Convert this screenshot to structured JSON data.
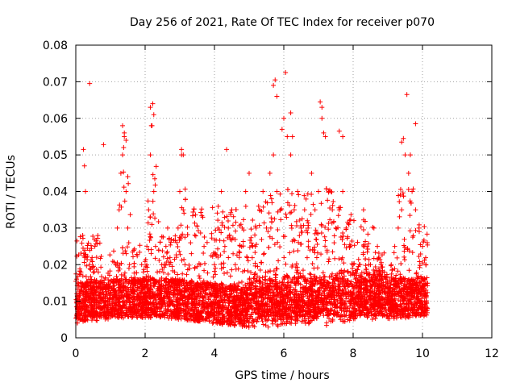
{
  "chart_data": {
    "type": "scatter",
    "title": "Day 256 of 2021, Rate Of TEC Index for receiver p070",
    "xlabel": "GPS time / hours",
    "ylabel": "ROTI / TECUs",
    "xlim": [
      0,
      12
    ],
    "ylim": [
      0,
      0.08
    ],
    "x_ticks": [
      0,
      2,
      4,
      6,
      8,
      10,
      12
    ],
    "x_tick_labels": [
      "0",
      "2",
      "4",
      "6",
      "8",
      "10",
      "12"
    ],
    "y_ticks": [
      0,
      0.01,
      0.02,
      0.03,
      0.04,
      0.05,
      0.06,
      0.07,
      0.08
    ],
    "y_tick_labels": [
      "0",
      "0.01",
      "0.02",
      "0.03",
      "0.04",
      "0.05",
      "0.06",
      "0.07",
      "0.08"
    ],
    "grid": true,
    "marker": "+",
    "marker_color": "#ff0000",
    "x_data_range": [
      0,
      10.15
    ],
    "series": [
      {
        "name": "ROTI",
        "x": [
          0.05,
          0.1,
          0.15,
          0.2,
          0.25,
          0.3,
          0.35,
          0.4,
          0.45,
          0.5,
          0.55,
          0.6,
          0.65,
          0.7,
          0.75,
          0.8,
          0.85,
          0.9,
          0.95,
          1.0,
          1.05,
          1.1,
          1.15,
          1.2,
          1.25,
          1.3,
          1.35,
          1.4,
          1.45,
          1.5,
          1.55,
          1.6,
          1.65,
          1.7,
          1.75,
          1.8,
          1.85,
          1.9,
          1.95,
          2.0,
          2.05,
          2.1,
          2.15,
          2.2,
          2.25,
          2.3,
          2.35,
          2.4,
          2.45,
          2.5,
          2.55,
          2.6,
          2.65,
          2.7,
          2.75,
          2.8,
          2.85,
          2.9,
          2.95,
          3.0,
          3.05,
          3.1,
          3.15,
          3.2,
          3.3,
          3.4,
          3.5,
          3.6,
          3.7,
          3.8,
          3.9,
          4.0,
          4.1,
          4.2,
          4.3,
          4.4,
          4.5,
          4.6,
          4.7,
          4.8,
          4.9,
          5.0,
          5.1,
          5.2,
          5.3,
          5.4,
          5.5,
          5.6,
          5.7,
          5.8,
          5.9,
          6.0,
          6.1,
          6.2,
          6.3,
          6.4,
          6.5,
          6.6,
          6.7,
          6.8,
          6.9,
          7.0,
          7.1,
          7.2,
          7.3,
          7.4,
          7.5,
          7.6,
          7.7,
          7.8,
          7.9,
          8.0,
          8.1,
          8.2,
          8.3,
          8.4,
          8.5,
          8.6,
          8.7,
          8.8,
          8.9,
          9.0,
          9.1,
          9.2,
          9.3,
          9.4,
          9.5,
          9.6,
          9.7,
          9.8,
          9.9,
          10.0,
          10.1,
          0.4,
          0.22,
          0.25,
          0.28,
          0.8,
          1.35,
          1.4,
          1.45,
          1.38,
          2.15,
          2.22,
          2.25,
          2.18,
          3.05,
          3.1,
          4.35,
          5.7,
          5.75,
          5.8,
          5.95,
          6.05,
          6.2,
          6.25,
          7.05,
          7.1,
          7.15,
          7.6,
          7.7,
          9.55,
          9.65,
          9.8,
          9.4,
          9.45
        ],
        "y": [
          0.008,
          0.012,
          0.018,
          0.028,
          0.022,
          0.014,
          0.01,
          0.02,
          0.016,
          0.012,
          0.025,
          0.022,
          0.018,
          0.015,
          0.012,
          0.01,
          0.009,
          0.012,
          0.015,
          0.011,
          0.01,
          0.013,
          0.02,
          0.03,
          0.035,
          0.045,
          0.05,
          0.055,
          0.04,
          0.03,
          0.02,
          0.015,
          0.012,
          0.01,
          0.009,
          0.011,
          0.014,
          0.02,
          0.018,
          0.012,
          0.025,
          0.035,
          0.05,
          0.058,
          0.04,
          0.025,
          0.018,
          0.014,
          0.012,
          0.01,
          0.02,
          0.025,
          0.03,
          0.02,
          0.015,
          0.012,
          0.018,
          0.022,
          0.03,
          0.04,
          0.05,
          0.035,
          0.02,
          0.015,
          0.012,
          0.01,
          0.014,
          0.02,
          0.025,
          0.015,
          0.012,
          0.02,
          0.03,
          0.04,
          0.025,
          0.03,
          0.035,
          0.02,
          0.015,
          0.03,
          0.04,
          0.045,
          0.025,
          0.03,
          0.035,
          0.04,
          0.03,
          0.045,
          0.05,
          0.04,
          0.035,
          0.06,
          0.055,
          0.05,
          0.035,
          0.04,
          0.03,
          0.035,
          0.03,
          0.045,
          0.035,
          0.04,
          0.06,
          0.055,
          0.04,
          0.035,
          0.03,
          0.035,
          0.04,
          0.03,
          0.025,
          0.02,
          0.015,
          0.02,
          0.035,
          0.025,
          0.02,
          0.03,
          0.025,
          0.02,
          0.018,
          0.015,
          0.02,
          0.025,
          0.03,
          0.035,
          0.05,
          0.045,
          0.04,
          0.035,
          0.03,
          0.025,
          0.02,
          0.0695,
          0.0515,
          0.047,
          0.04,
          0.0528,
          0.058,
          0.056,
          0.054,
          0.052,
          0.063,
          0.064,
          0.061,
          0.058,
          0.0515,
          0.05,
          0.0515,
          0.069,
          0.0705,
          0.066,
          0.057,
          0.0725,
          0.0615,
          0.055,
          0.0645,
          0.063,
          0.056,
          0.0565,
          0.055,
          0.0665,
          0.05,
          0.0585,
          0.0535,
          0.0545
        ]
      }
    ]
  }
}
